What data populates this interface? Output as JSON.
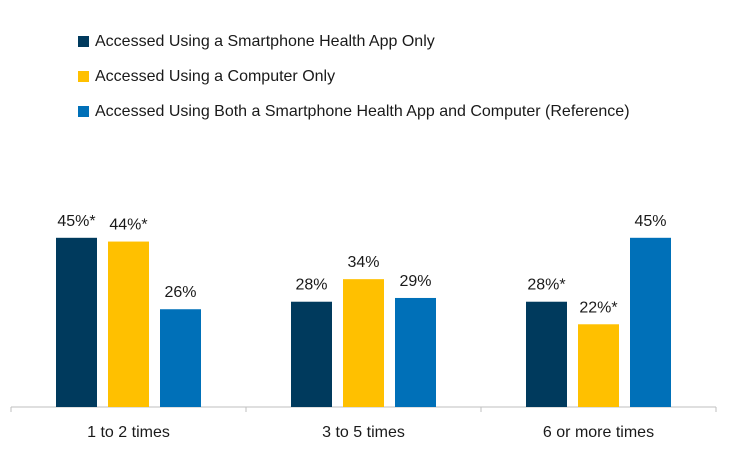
{
  "chart_data": {
    "type": "bar",
    "title": "",
    "xlabel": "",
    "ylabel": "",
    "categories": [
      "1 to 2 times",
      "3 to 5 times",
      "6 or more times"
    ],
    "ylim": [
      0,
      50
    ],
    "series": [
      {
        "name": "Accessed Using a Smartphone Health App Only",
        "color": "#003a5d",
        "values": [
          45,
          28,
          28
        ],
        "labels": [
          "45%*",
          "28%",
          "28%*"
        ]
      },
      {
        "name": "Accessed Using a Computer Only",
        "color": "#ffc000",
        "values": [
          44,
          34,
          22
        ],
        "labels": [
          "44%*",
          "34%",
          "22%*"
        ]
      },
      {
        "name": "Accessed Using Both a Smartphone Health App and Computer (Reference)",
        "color": "#0070b8",
        "values": [
          26,
          29,
          45
        ],
        "labels": [
          "26%",
          "29%",
          "45%"
        ]
      }
    ],
    "legend_position": "top-left",
    "grid": false
  }
}
